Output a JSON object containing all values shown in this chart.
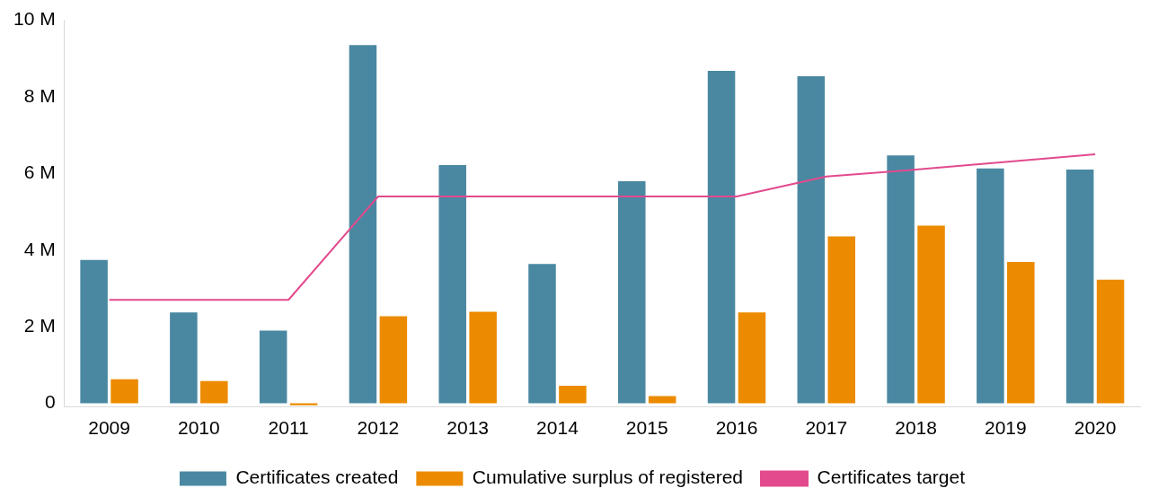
{
  "chart_data": {
    "type": "bar",
    "categories": [
      "2009",
      "2010",
      "2011",
      "2012",
      "2013",
      "2014",
      "2015",
      "2016",
      "2017",
      "2018",
      "2019",
      "2020"
    ],
    "series": [
      {
        "name": "Certificates created",
        "color": "#4a88a2",
        "values": [
          3.74,
          2.37,
          1.9,
          9.35,
          6.22,
          3.64,
          5.8,
          8.68,
          8.54,
          6.47,
          6.13,
          6.1
        ]
      },
      {
        "name": "Cumulative surplus of registered",
        "color": "#ec8b00",
        "values": [
          0.63,
          0.58,
          -0.05,
          2.27,
          2.39,
          0.46,
          0.19,
          2.37,
          4.36,
          4.64,
          3.69,
          3.23
        ]
      },
      {
        "name": "Certificates target",
        "color": "#e24a8d",
        "type": "line",
        "values": [
          2.7,
          2.7,
          2.7,
          5.4,
          5.4,
          5.4,
          5.4,
          5.4,
          5.92,
          6.1,
          6.3,
          6.5
        ]
      }
    ],
    "ylim": [
      -0.1,
      10
    ],
    "yticks": [
      {
        "value": 0,
        "label": "0"
      },
      {
        "value": 2,
        "label": "2 M"
      },
      {
        "value": 4,
        "label": "4 M"
      },
      {
        "value": 6,
        "label": "6 M"
      },
      {
        "value": 8,
        "label": "8 M"
      },
      {
        "value": 10,
        "label": "10 M"
      }
    ],
    "grid": false,
    "legend": "bottom",
    "marker": "none",
    "line_style": "solid"
  }
}
